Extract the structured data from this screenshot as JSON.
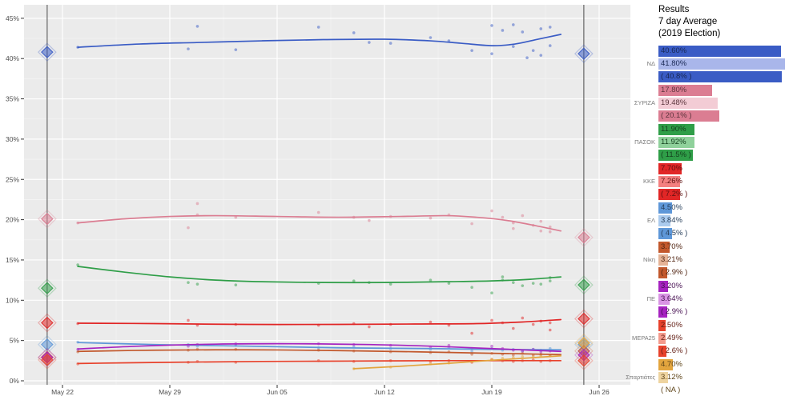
{
  "header": {
    "title_line1": "Results",
    "title_line2": "7 day Average",
    "title_line3": "(2019 Election)"
  },
  "chart_data": {
    "type": "scatter",
    "title": "Greek election polls: daily poll results with smoothed trend per party, plus election result diamonds",
    "x_axis": {
      "tick_labels": [
        "May 22",
        "May 29",
        "Jun 05",
        "Jun 12",
        "Jun 19",
        "Jun 26"
      ],
      "tick_days": [
        0,
        7,
        14,
        21,
        28,
        35
      ]
    },
    "y_axis": {
      "tick_percents": [
        0,
        5,
        10,
        15,
        20,
        25,
        30,
        35,
        40,
        45
      ],
      "range": [
        0,
        46.5
      ]
    },
    "style": {
      "panel_bg": "#ebebeb",
      "grid_major": "#ffffff",
      "grid_minor": "#f4f4f4",
      "axis_text": "#4d4d4d",
      "tick_mark": "#333333",
      "election_line": "#707070"
    },
    "election_markers": [
      {
        "name": "previous-election-line",
        "day": -1
      },
      {
        "name": "election-day-line",
        "day": 34
      }
    ],
    "parties": [
      {
        "id": "nd",
        "label": "ΝΔ",
        "color": "#3a5cc5",
        "color_light": "#a9b6ea",
        "result": 40.6,
        "result_label": "40.60%",
        "avg": 41.8,
        "avg_label": "41.80%",
        "prev": 40.8,
        "prev_label": "( 40.8% )",
        "trend": [
          [
            1,
            41.4
          ],
          [
            5,
            41.8
          ],
          [
            9,
            42.0
          ],
          [
            13,
            42.2
          ],
          [
            17,
            42.35
          ],
          [
            21,
            42.4
          ],
          [
            24,
            42.2
          ],
          [
            26,
            41.9
          ],
          [
            28,
            41.6
          ],
          [
            29.5,
            41.8
          ],
          [
            31,
            42.4
          ],
          [
            32.5,
            43.0
          ]
        ],
        "polls": [
          [
            1,
            41.4
          ],
          [
            8.2,
            41.2
          ],
          [
            8.8,
            44.0
          ],
          [
            11.3,
            41.1
          ],
          [
            16.7,
            43.9
          ],
          [
            19,
            43.2
          ],
          [
            20,
            42.0
          ],
          [
            21.4,
            41.9
          ],
          [
            24,
            42.6
          ],
          [
            25.2,
            42.2
          ],
          [
            26.7,
            41.0
          ],
          [
            28,
            44.1
          ],
          [
            28,
            40.6
          ],
          [
            28.7,
            43.5
          ],
          [
            29.4,
            44.2
          ],
          [
            29.4,
            41.5
          ],
          [
            30,
            43.3
          ],
          [
            30.3,
            40.1
          ],
          [
            30.7,
            41.0
          ],
          [
            31.2,
            43.7
          ],
          [
            31.2,
            40.4
          ],
          [
            31.8,
            43.9
          ],
          [
            31.8,
            41.6
          ]
        ]
      },
      {
        "id": "syriza",
        "label": "ΣΥΡΙΖΑ",
        "color": "#db7d92",
        "color_light": "#f3ccd5",
        "result": 17.8,
        "result_label": "17.80%",
        "avg": 19.48,
        "avg_label": "19.48%",
        "prev": 20.1,
        "prev_label": "( 20.1% )",
        "trend": [
          [
            1,
            19.6
          ],
          [
            4,
            20.1
          ],
          [
            7,
            20.4
          ],
          [
            10,
            20.5
          ],
          [
            14,
            20.4
          ],
          [
            18,
            20.3
          ],
          [
            22,
            20.4
          ],
          [
            25,
            20.5
          ],
          [
            27,
            20.3
          ],
          [
            29,
            19.9
          ],
          [
            31,
            19.2
          ],
          [
            32.5,
            18.6
          ]
        ],
        "polls": [
          [
            1,
            19.6
          ],
          [
            8.2,
            19.0
          ],
          [
            8.8,
            22.0
          ],
          [
            8.8,
            20.6
          ],
          [
            11.3,
            20.3
          ],
          [
            16.7,
            20.9
          ],
          [
            19,
            20.3
          ],
          [
            20,
            19.9
          ],
          [
            21.4,
            20.4
          ],
          [
            24,
            20.2
          ],
          [
            25.2,
            20.6
          ],
          [
            26.7,
            19.5
          ],
          [
            28,
            21.1
          ],
          [
            28.7,
            20.3
          ],
          [
            29.4,
            19.6
          ],
          [
            29.4,
            18.9
          ],
          [
            30,
            20.5
          ],
          [
            30.7,
            19.3
          ],
          [
            31.2,
            19.8
          ],
          [
            31.2,
            18.6
          ],
          [
            31.8,
            18.5
          ],
          [
            31.8,
            19.1
          ]
        ]
      },
      {
        "id": "pasok",
        "label": "ΠΑΣΟΚ",
        "color": "#2f9e48",
        "color_light": "#8fd19b",
        "result": 11.9,
        "result_label": "11.90%",
        "avg": 11.92,
        "avg_label": "11.92%",
        "prev": 11.5,
        "prev_label": "( 11.5% )",
        "trend": [
          [
            1,
            14.2
          ],
          [
            4,
            13.5
          ],
          [
            7,
            12.9
          ],
          [
            10,
            12.5
          ],
          [
            13,
            12.3
          ],
          [
            17,
            12.2
          ],
          [
            21,
            12.2
          ],
          [
            25,
            12.3
          ],
          [
            28,
            12.4
          ],
          [
            30.5,
            12.6
          ],
          [
            32.5,
            12.9
          ]
        ],
        "polls": [
          [
            1,
            14.4
          ],
          [
            8.2,
            12.2
          ],
          [
            8.8,
            12.0
          ],
          [
            11.3,
            11.9
          ],
          [
            16.7,
            12.1
          ],
          [
            19,
            12.4
          ],
          [
            20,
            12.2
          ],
          [
            21.4,
            12.0
          ],
          [
            24,
            12.5
          ],
          [
            25.2,
            12.1
          ],
          [
            26.7,
            11.6
          ],
          [
            28,
            10.9
          ],
          [
            28.7,
            12.9
          ],
          [
            28.7,
            12.5
          ],
          [
            29.4,
            12.2
          ],
          [
            30,
            11.8
          ],
          [
            30.7,
            12.1
          ],
          [
            31.2,
            12.0
          ],
          [
            31.8,
            12.8
          ],
          [
            31.8,
            12.4
          ]
        ]
      },
      {
        "id": "kke",
        "label": "ΚΚΕ",
        "color": "#e12626",
        "color_light": "#f48080",
        "result": 7.7,
        "result_label": "7.70%",
        "avg": 7.26,
        "avg_label": "7.26%",
        "prev": 7.2,
        "prev_label": "( 7.2% )",
        "trend": [
          [
            1,
            7.15
          ],
          [
            6,
            7.1
          ],
          [
            12,
            7.0
          ],
          [
            18,
            7.0
          ],
          [
            23,
            7.05
          ],
          [
            27,
            7.1
          ],
          [
            30,
            7.3
          ],
          [
            32.5,
            7.6
          ]
        ],
        "polls": [
          [
            1,
            7.1
          ],
          [
            8.2,
            7.5
          ],
          [
            8.8,
            6.9
          ],
          [
            11.3,
            7.0
          ],
          [
            16.7,
            6.9
          ],
          [
            19,
            7.1
          ],
          [
            20,
            6.7
          ],
          [
            21.4,
            7.0
          ],
          [
            24,
            7.3
          ],
          [
            25.2,
            6.9
          ],
          [
            26.7,
            5.9
          ],
          [
            28,
            7.5
          ],
          [
            28.7,
            7.2
          ],
          [
            29.4,
            6.5
          ],
          [
            30,
            7.8
          ],
          [
            30.7,
            7.0
          ],
          [
            31.2,
            7.4
          ],
          [
            31.8,
            7.2
          ],
          [
            31.8,
            6.3
          ]
        ]
      },
      {
        "id": "el",
        "label": "ΕΛ",
        "color": "#5e97d8",
        "color_light": "#abcbee",
        "result": 4.5,
        "result_label": "4.50%",
        "avg": 3.84,
        "avg_label": "3.84%",
        "prev": 4.5,
        "prev_label": "( 4.5% )",
        "trend": [
          [
            1,
            4.75
          ],
          [
            6,
            4.5
          ],
          [
            12,
            4.3
          ],
          [
            18,
            4.1
          ],
          [
            24,
            4.0
          ],
          [
            28,
            3.9
          ],
          [
            32.5,
            3.85
          ]
        ],
        "polls": [
          [
            1,
            4.8
          ],
          [
            8.2,
            4.5
          ],
          [
            8.8,
            4.3
          ],
          [
            11.3,
            4.4
          ],
          [
            16.7,
            4.1
          ],
          [
            19,
            4.2
          ],
          [
            21.4,
            4.0
          ],
          [
            24,
            3.9
          ],
          [
            25.2,
            4.1
          ],
          [
            26.7,
            3.7
          ],
          [
            28,
            4.0
          ],
          [
            28.7,
            3.8
          ],
          [
            29.4,
            3.9
          ],
          [
            30,
            3.7
          ],
          [
            30.7,
            3.9
          ],
          [
            31.2,
            3.8
          ],
          [
            31.8,
            4.0
          ]
        ]
      },
      {
        "id": "niki",
        "label": "Νίκη",
        "color": "#c2582c",
        "color_light": "#e5b396",
        "result": 3.7,
        "result_label": "3.70%",
        "avg": 3.21,
        "avg_label": "3.21%",
        "prev": 2.9,
        "prev_label": "( 2.9% )",
        "trend": [
          [
            1,
            3.65
          ],
          [
            6,
            3.8
          ],
          [
            12,
            3.85
          ],
          [
            18,
            3.75
          ],
          [
            23,
            3.6
          ],
          [
            27,
            3.45
          ],
          [
            30,
            3.35
          ],
          [
            32.5,
            3.25
          ]
        ],
        "polls": [
          [
            1,
            3.6
          ],
          [
            8.2,
            3.8
          ],
          [
            8.8,
            3.9
          ],
          [
            11.3,
            3.9
          ],
          [
            16.7,
            3.8
          ],
          [
            19,
            3.7
          ],
          [
            21.4,
            3.6
          ],
          [
            24,
            3.5
          ],
          [
            25.2,
            3.6
          ],
          [
            26.7,
            3.3
          ],
          [
            28,
            3.4
          ],
          [
            28.7,
            3.3
          ],
          [
            29.4,
            3.2
          ],
          [
            30,
            3.4
          ],
          [
            30.7,
            3.2
          ],
          [
            31.2,
            3.3
          ],
          [
            31.8,
            3.1
          ]
        ]
      },
      {
        "id": "pe",
        "label": "ΠΕ",
        "color": "#a623c0",
        "color_light": "#d993e4",
        "result": 3.2,
        "result_label": "3.20%",
        "avg": 3.64,
        "avg_label": "3.64%",
        "prev": 2.9,
        "prev_label": "( 2.9% )",
        "trend": [
          [
            1,
            3.95
          ],
          [
            5,
            4.3
          ],
          [
            10,
            4.55
          ],
          [
            15,
            4.6
          ],
          [
            20,
            4.5
          ],
          [
            24,
            4.3
          ],
          [
            28,
            4.0
          ],
          [
            30.5,
            3.8
          ],
          [
            32.5,
            3.65
          ]
        ],
        "polls": [
          [
            1,
            3.9
          ],
          [
            8.2,
            4.3
          ],
          [
            8.8,
            4.5
          ],
          [
            11.3,
            4.6
          ],
          [
            16.7,
            4.6
          ],
          [
            19,
            4.5
          ],
          [
            21.4,
            4.4
          ],
          [
            24,
            4.2
          ],
          [
            25.2,
            4.4
          ],
          [
            26.7,
            4.0
          ],
          [
            28,
            4.3
          ],
          [
            28.7,
            4.0
          ],
          [
            29.4,
            3.8
          ],
          [
            30,
            3.7
          ],
          [
            30.7,
            3.9
          ],
          [
            31.2,
            3.6
          ],
          [
            31.8,
            3.7
          ]
        ]
      },
      {
        "id": "mera25",
        "label": "ΜΕΡΑ25",
        "color": "#e8422c",
        "color_light": "#f49a8c",
        "result": 2.5,
        "result_label": "2.50%",
        "avg": 2.49,
        "avg_label": "2.49%",
        "prev": 2.6,
        "prev_label": "( 2.6% )",
        "trend": [
          [
            1,
            2.15
          ],
          [
            7,
            2.3
          ],
          [
            13,
            2.4
          ],
          [
            19,
            2.45
          ],
          [
            25,
            2.5
          ],
          [
            30,
            2.5
          ],
          [
            32.5,
            2.5
          ]
        ],
        "polls": [
          [
            1,
            2.1
          ],
          [
            8.2,
            2.3
          ],
          [
            8.8,
            2.4
          ],
          [
            11.3,
            2.3
          ],
          [
            16.7,
            2.5
          ],
          [
            19,
            2.4
          ],
          [
            21.4,
            2.5
          ],
          [
            24,
            2.4
          ],
          [
            25.2,
            2.5
          ],
          [
            26.7,
            2.3
          ],
          [
            28,
            2.6
          ],
          [
            28.7,
            2.5
          ],
          [
            29.4,
            2.4
          ],
          [
            30,
            2.5
          ],
          [
            30.7,
            2.6
          ],
          [
            31.2,
            2.4
          ],
          [
            31.8,
            2.5
          ]
        ]
      },
      {
        "id": "spartiates",
        "label": "Σπαρτιάτες",
        "color": "#e3a53e",
        "color_light": "#eed4a0",
        "result": 4.7,
        "result_label": "4.70%",
        "avg": 3.12,
        "avg_label": "3.12%",
        "prev": null,
        "prev_label": "( NA )",
        "trend": [
          [
            19,
            1.5
          ],
          [
            22,
            1.8
          ],
          [
            25,
            2.15
          ],
          [
            28,
            2.55
          ],
          [
            30.5,
            2.85
          ],
          [
            32.5,
            3.1
          ]
        ],
        "polls": [
          [
            19,
            1.5
          ],
          [
            21.4,
            1.7
          ],
          [
            24,
            2.1
          ],
          [
            25.2,
            2.2
          ],
          [
            26.7,
            2.4
          ],
          [
            28,
            2.7
          ],
          [
            28.7,
            2.8
          ],
          [
            29.4,
            2.9
          ],
          [
            30,
            3.0
          ],
          [
            30.7,
            3.0
          ],
          [
            31.2,
            3.1
          ],
          [
            31.8,
            3.1
          ]
        ]
      }
    ]
  }
}
